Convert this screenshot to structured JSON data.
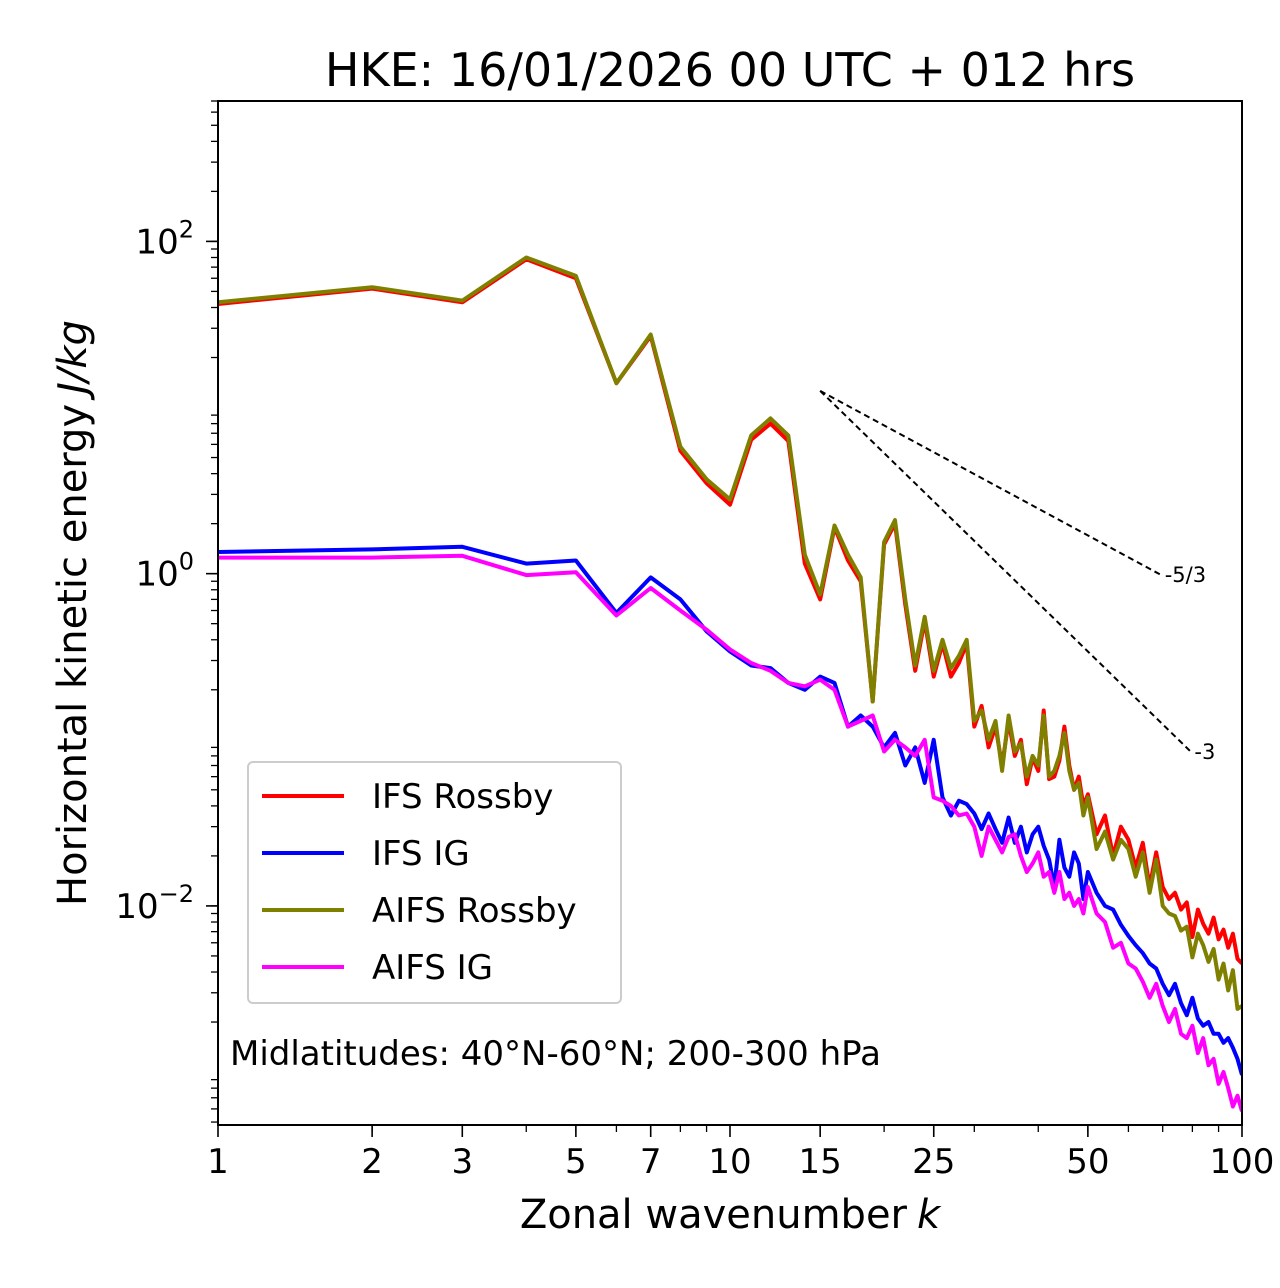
{
  "chart_data": {
    "type": "line",
    "title": "HKE: 16/01/2026 00 UTC + 012 hrs",
    "xlabel": "Zonal wavenumber",
    "xlabel_italic": "k",
    "ylabel": "Horizontal kinetic energy",
    "ylabel_italic": "J/kg",
    "xscale": "log",
    "yscale": "log",
    "xlim": [
      1,
      100
    ],
    "ylim": [
      0.00048,
      700
    ],
    "x_ticks": [
      1,
      2,
      3,
      5,
      7,
      10,
      15,
      25,
      50,
      100
    ],
    "x_tick_labels": [
      "1",
      "2",
      "3",
      "5",
      "7",
      "10",
      "15",
      "25",
      "50",
      "100"
    ],
    "y_ticks": [
      {
        "value": 100,
        "base": "10",
        "exp": "2"
      },
      {
        "value": 1,
        "base": "10",
        "exp": "0"
      },
      {
        "value": 0.01,
        "base": "10",
        "exp": "−2"
      }
    ],
    "legend_position": "lower-left",
    "annotation": "Midlatitudes: 40°N-60°N; 200-300 hPa",
    "reference_lines": [
      {
        "label": "-5/3",
        "x": [
          15,
          70
        ],
        "y": [
          12.6,
          0.97
        ]
      },
      {
        "label": "-3",
        "x": [
          15,
          80
        ],
        "y": [
          12.6,
          0.083
        ]
      }
    ],
    "series": [
      {
        "name": "IFS Rossby",
        "color": "#ff0000",
        "x": [
          1,
          2,
          3,
          4,
          5,
          6,
          7,
          8,
          9,
          10,
          11,
          12,
          13,
          14,
          15,
          16,
          17,
          18,
          19,
          20,
          21,
          22,
          23,
          24,
          25,
          26,
          27,
          28,
          29,
          30,
          31,
          32,
          33,
          34,
          35,
          36,
          37,
          38,
          39,
          40,
          41,
          42,
          43,
          44,
          45,
          46,
          47,
          48,
          49,
          50,
          52,
          54,
          56,
          58,
          60,
          62,
          64,
          66,
          68,
          70,
          72,
          74,
          76,
          78,
          80,
          82,
          84,
          86,
          88,
          90,
          92,
          94,
          96,
          98,
          100
        ],
        "y": [
          42,
          52,
          43,
          78,
          60,
          14,
          27,
          5.5,
          3.5,
          2.6,
          6.4,
          8.0,
          6.3,
          1.15,
          0.7,
          1.9,
          1.2,
          0.9,
          0.17,
          1.5,
          2.0,
          0.65,
          0.26,
          0.52,
          0.24,
          0.38,
          0.24,
          0.29,
          0.38,
          0.12,
          0.16,
          0.09,
          0.12,
          0.07,
          0.13,
          0.08,
          0.1,
          0.054,
          0.078,
          0.065,
          0.15,
          0.058,
          0.06,
          0.075,
          0.12,
          0.07,
          0.05,
          0.06,
          0.04,
          0.047,
          0.027,
          0.035,
          0.02,
          0.03,
          0.025,
          0.017,
          0.024,
          0.013,
          0.021,
          0.013,
          0.011,
          0.012,
          0.0095,
          0.0105,
          0.0065,
          0.0095,
          0.0078,
          0.0068,
          0.0085,
          0.0063,
          0.0072,
          0.0056,
          0.0068,
          0.0048,
          0.0045
        ]
      },
      {
        "name": "IFS IG",
        "color": "#0000ff",
        "x": [
          1,
          2,
          3,
          4,
          5,
          6,
          7,
          8,
          9,
          10,
          11,
          12,
          13,
          14,
          15,
          16,
          17,
          18,
          19,
          20,
          21,
          22,
          23,
          24,
          25,
          26,
          27,
          28,
          29,
          30,
          31,
          32,
          33,
          34,
          35,
          36,
          37,
          38,
          39,
          40,
          41,
          42,
          43,
          44,
          45,
          46,
          47,
          48,
          49,
          50,
          52,
          54,
          56,
          58,
          60,
          62,
          64,
          66,
          68,
          70,
          72,
          74,
          76,
          78,
          80,
          82,
          84,
          86,
          88,
          90,
          92,
          94,
          96,
          98,
          100
        ],
        "y": [
          1.35,
          1.4,
          1.45,
          1.15,
          1.2,
          0.58,
          0.95,
          0.7,
          0.45,
          0.34,
          0.28,
          0.27,
          0.22,
          0.2,
          0.24,
          0.22,
          0.12,
          0.14,
          0.12,
          0.09,
          0.11,
          0.07,
          0.09,
          0.055,
          0.1,
          0.045,
          0.035,
          0.043,
          0.041,
          0.036,
          0.029,
          0.036,
          0.029,
          0.024,
          0.034,
          0.024,
          0.03,
          0.021,
          0.027,
          0.03,
          0.023,
          0.019,
          0.013,
          0.025,
          0.017,
          0.015,
          0.021,
          0.018,
          0.011,
          0.016,
          0.012,
          0.01,
          0.0095,
          0.0077,
          0.0066,
          0.0058,
          0.0052,
          0.0045,
          0.0042,
          0.0034,
          0.0029,
          0.0034,
          0.0026,
          0.0022,
          0.0028,
          0.0021,
          0.0019,
          0.002,
          0.0017,
          0.0017,
          0.0015,
          0.0016,
          0.0014,
          0.0012,
          0.00096
        ]
      },
      {
        "name": "AIFS Rossby",
        "color": "#808000",
        "x": [
          1,
          2,
          3,
          4,
          5,
          6,
          7,
          8,
          9,
          10,
          11,
          12,
          13,
          14,
          15,
          16,
          17,
          18,
          19,
          20,
          21,
          22,
          23,
          24,
          25,
          26,
          27,
          28,
          29,
          30,
          31,
          32,
          33,
          34,
          35,
          36,
          37,
          38,
          39,
          40,
          41,
          42,
          43,
          44,
          45,
          46,
          47,
          48,
          49,
          50,
          52,
          54,
          56,
          58,
          60,
          62,
          64,
          66,
          68,
          70,
          72,
          74,
          76,
          78,
          80,
          82,
          84,
          86,
          88,
          90,
          92,
          94,
          96,
          98,
          100
        ],
        "y": [
          43,
          53,
          44,
          80,
          62,
          14,
          27.5,
          5.8,
          3.7,
          2.8,
          6.8,
          8.6,
          6.8,
          1.3,
          0.75,
          1.95,
          1.3,
          0.95,
          0.17,
          1.55,
          2.1,
          0.7,
          0.28,
          0.55,
          0.26,
          0.4,
          0.27,
          0.32,
          0.4,
          0.13,
          0.15,
          0.1,
          0.13,
          0.065,
          0.14,
          0.085,
          0.095,
          0.06,
          0.08,
          0.07,
          0.14,
          0.06,
          0.065,
          0.08,
          0.11,
          0.065,
          0.05,
          0.055,
          0.035,
          0.045,
          0.022,
          0.028,
          0.019,
          0.025,
          0.022,
          0.015,
          0.021,
          0.012,
          0.019,
          0.01,
          0.009,
          0.0087,
          0.0071,
          0.0075,
          0.0049,
          0.0068,
          0.0058,
          0.0046,
          0.0055,
          0.0036,
          0.0045,
          0.0031,
          0.0041,
          0.0024,
          0.0025
        ]
      },
      {
        "name": "AIFS IG",
        "color": "#ff00ff",
        "x": [
          1,
          2,
          3,
          4,
          5,
          6,
          7,
          8,
          9,
          10,
          11,
          12,
          13,
          14,
          15,
          16,
          17,
          18,
          19,
          20,
          21,
          22,
          23,
          24,
          25,
          26,
          27,
          28,
          29,
          30,
          31,
          32,
          33,
          34,
          35,
          36,
          37,
          38,
          39,
          40,
          41,
          42,
          43,
          44,
          45,
          46,
          47,
          48,
          49,
          50,
          52,
          54,
          56,
          58,
          60,
          62,
          64,
          66,
          68,
          70,
          72,
          74,
          76,
          78,
          80,
          82,
          84,
          86,
          88,
          90,
          92,
          94,
          96,
          98,
          100
        ],
        "y": [
          1.25,
          1.25,
          1.28,
          0.98,
          1.02,
          0.56,
          0.82,
          0.6,
          0.46,
          0.35,
          0.29,
          0.26,
          0.22,
          0.21,
          0.23,
          0.2,
          0.12,
          0.13,
          0.14,
          0.085,
          0.1,
          0.09,
          0.08,
          0.1,
          0.045,
          0.043,
          0.04,
          0.035,
          0.036,
          0.03,
          0.02,
          0.03,
          0.025,
          0.021,
          0.026,
          0.027,
          0.02,
          0.016,
          0.018,
          0.021,
          0.015,
          0.016,
          0.012,
          0.016,
          0.011,
          0.012,
          0.01,
          0.011,
          0.009,
          0.013,
          0.009,
          0.008,
          0.0056,
          0.006,
          0.0045,
          0.0042,
          0.0035,
          0.0028,
          0.0034,
          0.0025,
          0.002,
          0.0024,
          0.0017,
          0.0016,
          0.0019,
          0.0013,
          0.0016,
          0.0011,
          0.0012,
          0.00085,
          0.001,
          0.0008,
          0.00062,
          0.00072,
          0.00058
        ]
      }
    ]
  }
}
